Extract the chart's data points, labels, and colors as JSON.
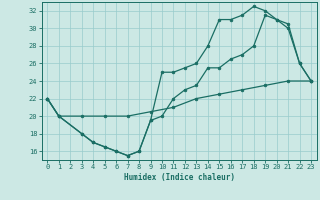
{
  "xlabel": "Humidex (Indice chaleur)",
  "bg_color": "#cce8e4",
  "line_color": "#1a6e64",
  "grid_color": "#99cccc",
  "xlim": [
    -0.5,
    23.5
  ],
  "ylim": [
    15.0,
    33.0
  ],
  "xticks": [
    0,
    1,
    2,
    3,
    4,
    5,
    6,
    7,
    8,
    9,
    10,
    11,
    12,
    13,
    14,
    15,
    16,
    17,
    18,
    19,
    20,
    21,
    22,
    23
  ],
  "yticks": [
    16,
    18,
    20,
    22,
    24,
    26,
    28,
    30,
    32
  ],
  "line1_x": [
    0,
    1,
    3,
    4,
    5,
    6,
    7,
    8,
    9,
    10,
    11,
    12,
    13,
    14,
    15,
    16,
    17,
    18,
    19,
    20,
    21,
    22,
    23
  ],
  "line1_y": [
    22,
    20,
    18,
    17,
    16.5,
    16,
    15.5,
    16,
    19.5,
    25,
    25,
    25.5,
    26,
    28,
    31,
    31,
    31.5,
    32.5,
    32,
    31,
    30.5,
    26,
    24
  ],
  "line2_x": [
    0,
    1,
    3,
    4,
    5,
    6,
    7,
    8,
    9,
    10,
    11,
    12,
    13,
    14,
    15,
    16,
    17,
    18,
    19,
    20,
    21,
    22,
    23
  ],
  "line2_y": [
    22,
    20,
    18,
    17,
    16.5,
    16,
    15.5,
    16,
    19.5,
    20,
    22,
    23,
    23.5,
    25.5,
    25.5,
    26.5,
    27,
    28,
    31.5,
    31,
    30,
    26,
    24
  ],
  "line3_x": [
    0,
    1,
    3,
    5,
    7,
    9,
    11,
    13,
    15,
    17,
    19,
    21,
    23
  ],
  "line3_y": [
    22,
    20,
    20,
    20,
    20,
    20.5,
    21,
    22,
    22.5,
    23,
    23.5,
    24,
    24
  ]
}
